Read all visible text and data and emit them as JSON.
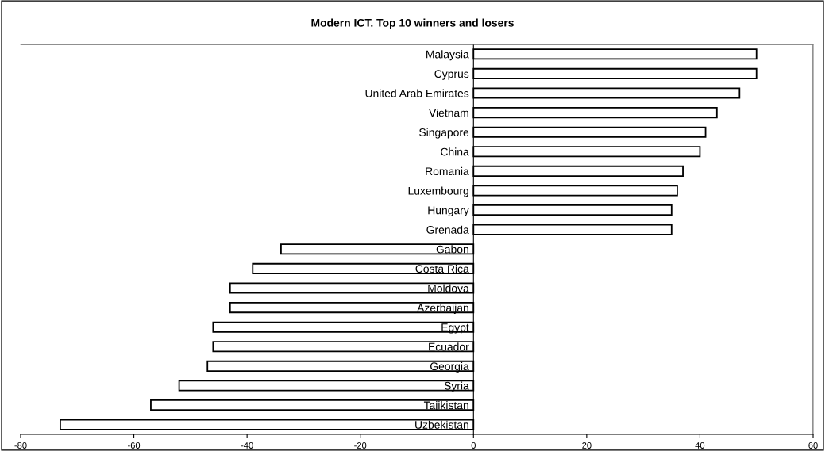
{
  "chart_data": {
    "type": "bar",
    "orientation": "horizontal",
    "title": "Modern ICT. Top 10 winners and losers",
    "categories": [
      "Malaysia",
      "Cyprus",
      "United Arab Emirates",
      "Vietnam",
      "Singapore",
      "China",
      "Romania",
      "Luxembourg",
      "Hungary",
      "Grenada",
      "Gabon",
      "Costa Rica",
      "Moldova",
      "Azerbaijan",
      "Egypt",
      "Ecuador",
      "Georgia",
      "Syria",
      "Tajikistan",
      "Uzbekistan"
    ],
    "values": [
      50,
      50,
      47,
      43,
      41,
      40,
      37,
      36,
      35,
      35,
      -34,
      -39,
      -43,
      -43,
      -46,
      -46,
      -47,
      -52,
      -57,
      -73
    ],
    "color": "#ffffff",
    "xlim": [
      -80,
      60
    ],
    "xticks": [
      -80,
      -60,
      -40,
      -20,
      0,
      20,
      40,
      60
    ],
    "grid": false,
    "legend": false
  }
}
